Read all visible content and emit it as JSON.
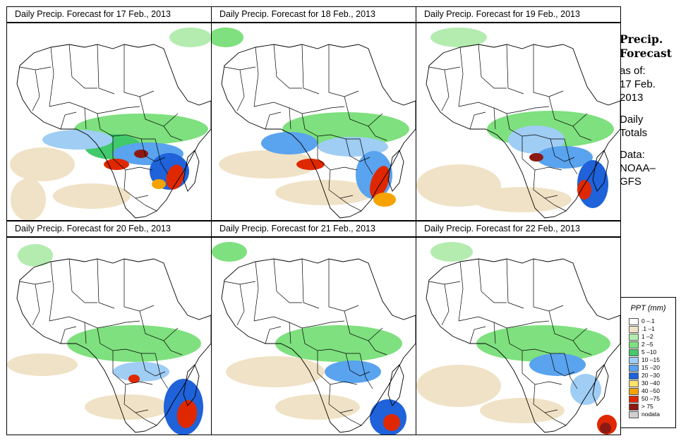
{
  "panels": [
    {
      "title": "Daily Precip. Forecast for  17 Feb., 2013"
    },
    {
      "title": "Daily Precip. Forecast for  18 Feb., 2013"
    },
    {
      "title": "Daily Precip. Forecast for  19 Feb., 2013"
    },
    {
      "title": "Daily Precip. Forecast for  20 Feb., 2013"
    },
    {
      "title": "Daily Precip. Forecast for  21 Feb., 2013"
    },
    {
      "title": "Daily Precip. Forecast for  22 Feb., 2013"
    }
  ],
  "sidebar": {
    "title_line1": "Precip.",
    "title_line2": "Forecast",
    "asof_line1": "as of:",
    "asof_line2": "17 Feb.",
    "asof_line3": "2013",
    "type_line1": "Daily",
    "type_line2": "Totals",
    "source_line1": "Data:",
    "source_line2": "NOAA–",
    "source_line3": "GFS"
  },
  "legend": {
    "title": "PPT (mm)",
    "items": [
      {
        "label": "0 –.1",
        "color": "#ffffff"
      },
      {
        "label": ".1 –1",
        "color": "#f0e2c6"
      },
      {
        "label": "1 –2",
        "color": "#b4ecb0"
      },
      {
        "label": "2 –5",
        "color": "#7ee07e"
      },
      {
        "label": "5 –10",
        "color": "#41c96b"
      },
      {
        "label": "10 –15",
        "color": "#9fcdf4"
      },
      {
        "label": "15 –20",
        "color": "#5aa3ee"
      },
      {
        "label": "20 –30",
        "color": "#1f62d9"
      },
      {
        "label": "30 –40",
        "color": "#ffe16e"
      },
      {
        "label": "40 –50",
        "color": "#f6a300"
      },
      {
        "label": "50 –75",
        "color": "#e02800"
      },
      {
        "label": "> 75",
        "color": "#8c1a12"
      },
      {
        "label": "nodata",
        "color": "#cfcfcf"
      }
    ]
  }
}
